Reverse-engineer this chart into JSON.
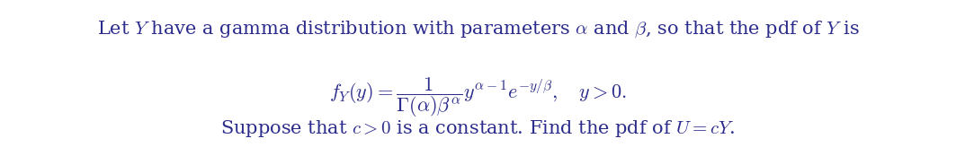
{
  "background_color": "#ffffff",
  "line1": "Let $Y$ have a gamma distribution with parameters $\\alpha$ and $\\beta$, so that the pdf of $Y$ is",
  "line2": "$f_Y(y) = \\dfrac{1}{\\Gamma(\\alpha)\\beta^\\alpha}y^{\\alpha-1}e^{-y/\\beta}, \\quad y > 0.$",
  "line3": "Suppose that $c > 0$ is a constant. Find the pdf of $U = cY$.",
  "fig_width": 10.63,
  "fig_height": 1.74,
  "dpi": 100,
  "font_size_text": 15,
  "font_size_eq": 16,
  "text_color": "#2b2b8c"
}
